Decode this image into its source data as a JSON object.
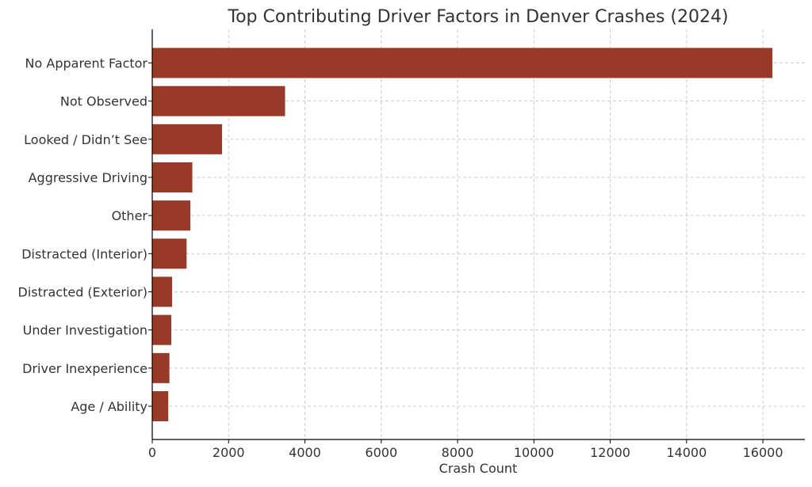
{
  "chart_data": {
    "type": "bar",
    "orientation": "horizontal",
    "title": "Top Contributing Driver Factors in Denver Crashes (2024)",
    "xlabel": "Crash Count",
    "ylabel": "",
    "categories": [
      "No Apparent Factor",
      "Not Observed",
      "Looked / Didn’t See",
      "Aggressive Driving",
      "Other",
      "Distracted (Interior)",
      "Distracted (Exterior)",
      "Under Investigation",
      "Driver Inexperience",
      "Age / Ability"
    ],
    "values": [
      16250,
      3480,
      1830,
      1050,
      1000,
      900,
      520,
      500,
      450,
      420
    ],
    "xlim": [
      0,
      17100
    ],
    "xticks": [
      0,
      2000,
      4000,
      6000,
      8000,
      10000,
      12000,
      14000,
      16000
    ],
    "grid": true,
    "bar_color": "#983a27",
    "grid_color": "#cccccc",
    "axis_color": "#000000",
    "text_color": "#333333"
  }
}
